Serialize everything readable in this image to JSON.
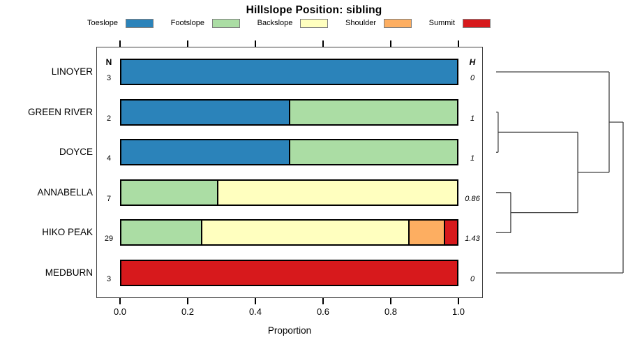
{
  "figure": {
    "title": "Hillslope Position: sibling",
    "x_axis_label": "Proportion",
    "n_header": "N",
    "h_header": "H"
  },
  "legend": {
    "items": [
      {
        "label": "Toeslope",
        "color": "#2B83BA"
      },
      {
        "label": "Footslope",
        "color": "#ABDDA4"
      },
      {
        "label": "Backslope",
        "color": "#FFFFBF"
      },
      {
        "label": "Shoulder",
        "color": "#FDAE61"
      },
      {
        "label": "Summit",
        "color": "#D7191C"
      }
    ],
    "swatch_border_color": "#7e7e7e"
  },
  "chart_data": {
    "type": "bar",
    "variant": "horizontal-stacked-proportion-with-dendrogram",
    "title": "Hillslope Position: sibling",
    "xlabel": "Proportion",
    "xlim": [
      0,
      1
    ],
    "xticks": [
      "0.0",
      "0.2",
      "0.4",
      "0.6",
      "0.8",
      "1.0"
    ],
    "grid": false,
    "legend_position": "top",
    "categories": [
      "Toeslope",
      "Footslope",
      "Backslope",
      "Shoulder",
      "Summit"
    ],
    "colors": {
      "Toeslope": "#2B83BA",
      "Footslope": "#ABDDA4",
      "Backslope": "#FFFFBF",
      "Shoulder": "#FDAE61",
      "Summit": "#D7191C"
    },
    "rows": [
      {
        "label": "LINOYER",
        "n": "3",
        "shannon_h": "0",
        "segments": [
          {
            "category": "Toeslope",
            "proportion": 1.0
          }
        ]
      },
      {
        "label": "GREEN RIVER",
        "n": "2",
        "shannon_h": "1",
        "segments": [
          {
            "category": "Toeslope",
            "proportion": 0.5
          },
          {
            "category": "Footslope",
            "proportion": 0.5
          }
        ]
      },
      {
        "label": "DOYCE",
        "n": "4",
        "shannon_h": "1",
        "segments": [
          {
            "category": "Toeslope",
            "proportion": 0.5
          },
          {
            "category": "Footslope",
            "proportion": 0.5
          }
        ]
      },
      {
        "label": "ANNABELLA",
        "n": "7",
        "shannon_h": "0.86",
        "segments": [
          {
            "category": "Footslope",
            "proportion": 0.286
          },
          {
            "category": "Backslope",
            "proportion": 0.714
          }
        ]
      },
      {
        "label": "HIKO PEAK",
        "n": "29",
        "shannon_h": "1.43",
        "segments": [
          {
            "category": "Footslope",
            "proportion": 0.241
          },
          {
            "category": "Backslope",
            "proportion": 0.621
          },
          {
            "category": "Shoulder",
            "proportion": 0.103
          },
          {
            "category": "Summit",
            "proportion": 0.035
          }
        ]
      },
      {
        "label": "MEDBURN",
        "n": "3",
        "shannon_h": "0",
        "segments": [
          {
            "category": "Summit",
            "proportion": 1.0
          }
        ]
      }
    ],
    "dendrogram": {
      "leaves": [
        "LINOYER",
        "GREEN RIVER",
        "DOYCE",
        "ANNABELLA",
        "HIKO PEAK",
        "MEDBURN"
      ],
      "merges": [
        {
          "a": "GREEN RIVER",
          "b": "DOYCE",
          "height": 0.016
        },
        {
          "a": "ANNABELLA",
          "b": "HIKO PEAK",
          "height": 0.115
        },
        {
          "a": "m0",
          "b": "m1",
          "height": 0.643
        },
        {
          "a": "m2",
          "b": "LINOYER",
          "height": 0.89
        },
        {
          "a": "m3",
          "b": "MEDBURN",
          "height": 1.0
        }
      ],
      "line_color": "#404040"
    }
  }
}
